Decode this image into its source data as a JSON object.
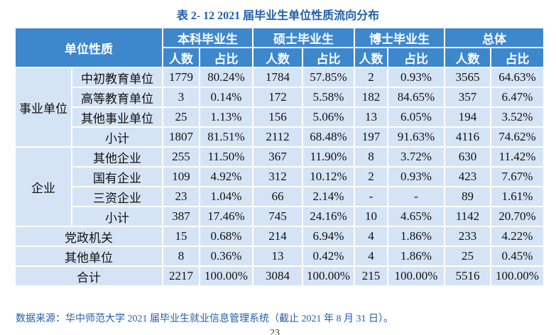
{
  "title": "表 2- 12 2021 届毕业生单位性质流向分布",
  "table": {
    "header": {
      "corner": "单位性质",
      "groups": [
        "本科毕业生",
        "硕士毕业生",
        "博士毕业生",
        "总体"
      ],
      "subs": [
        "人数",
        "占比",
        "人数",
        "占比",
        "人数",
        "占比",
        "人数",
        "占比"
      ]
    },
    "sections": [
      {
        "group": "事业单位",
        "rows": [
          {
            "label": "中初教育单位",
            "cells": [
              "1779",
              "80.24%",
              "1784",
              "57.85%",
              "2",
              "0.93%",
              "3565",
              "64.63%"
            ]
          },
          {
            "label": "高等教育单位",
            "cells": [
              "3",
              "0.14%",
              "172",
              "5.58%",
              "182",
              "84.65%",
              "357",
              "6.47%"
            ]
          },
          {
            "label": "其他事业单位",
            "cells": [
              "25",
              "1.13%",
              "156",
              "5.06%",
              "13",
              "6.05%",
              "194",
              "3.52%"
            ]
          },
          {
            "label": "小计",
            "cells": [
              "1807",
              "81.51%",
              "2112",
              "68.48%",
              "197",
              "91.63%",
              "4116",
              "74.62%"
            ]
          }
        ]
      },
      {
        "group": "企业",
        "rows": [
          {
            "label": "其他企业",
            "cells": [
              "255",
              "11.50%",
              "367",
              "11.90%",
              "8",
              "3.72%",
              "630",
              "11.42%"
            ]
          },
          {
            "label": "国有企业",
            "cells": [
              "109",
              "4.92%",
              "312",
              "10.12%",
              "2",
              "0.93%",
              "423",
              "7.67%"
            ]
          },
          {
            "label": "三资企业",
            "cells": [
              "23",
              "1.04%",
              "66",
              "2.14%",
              "-",
              "-",
              "89",
              "1.61%"
            ]
          },
          {
            "label": "小计",
            "cells": [
              "387",
              "17.46%",
              "745",
              "24.16%",
              "10",
              "4.65%",
              "1142",
              "20.70%"
            ]
          }
        ]
      },
      {
        "rows": [
          {
            "label": "党政机关",
            "cells": [
              "15",
              "0.68%",
              "214",
              "6.94%",
              "4",
              "1.86%",
              "233",
              "4.22%"
            ]
          }
        ]
      },
      {
        "rows": [
          {
            "label": "其他单位",
            "cells": [
              "8",
              "0.36%",
              "13",
              "0.42%",
              "4",
              "1.86%",
              "25",
              "0.45%"
            ]
          }
        ]
      },
      {
        "rows": [
          {
            "label": "合计",
            "cells": [
              "2217",
              "100.00%",
              "3084",
              "100.00%",
              "215",
              "100.00%",
              "5516",
              "100.00%"
            ]
          }
        ]
      }
    ]
  },
  "footer": {
    "source": "数据来源：华中师范大学 2021 届毕业生就业信息管理系统（截止 2021 年 8 月 31 日）。",
    "page": "23"
  }
}
